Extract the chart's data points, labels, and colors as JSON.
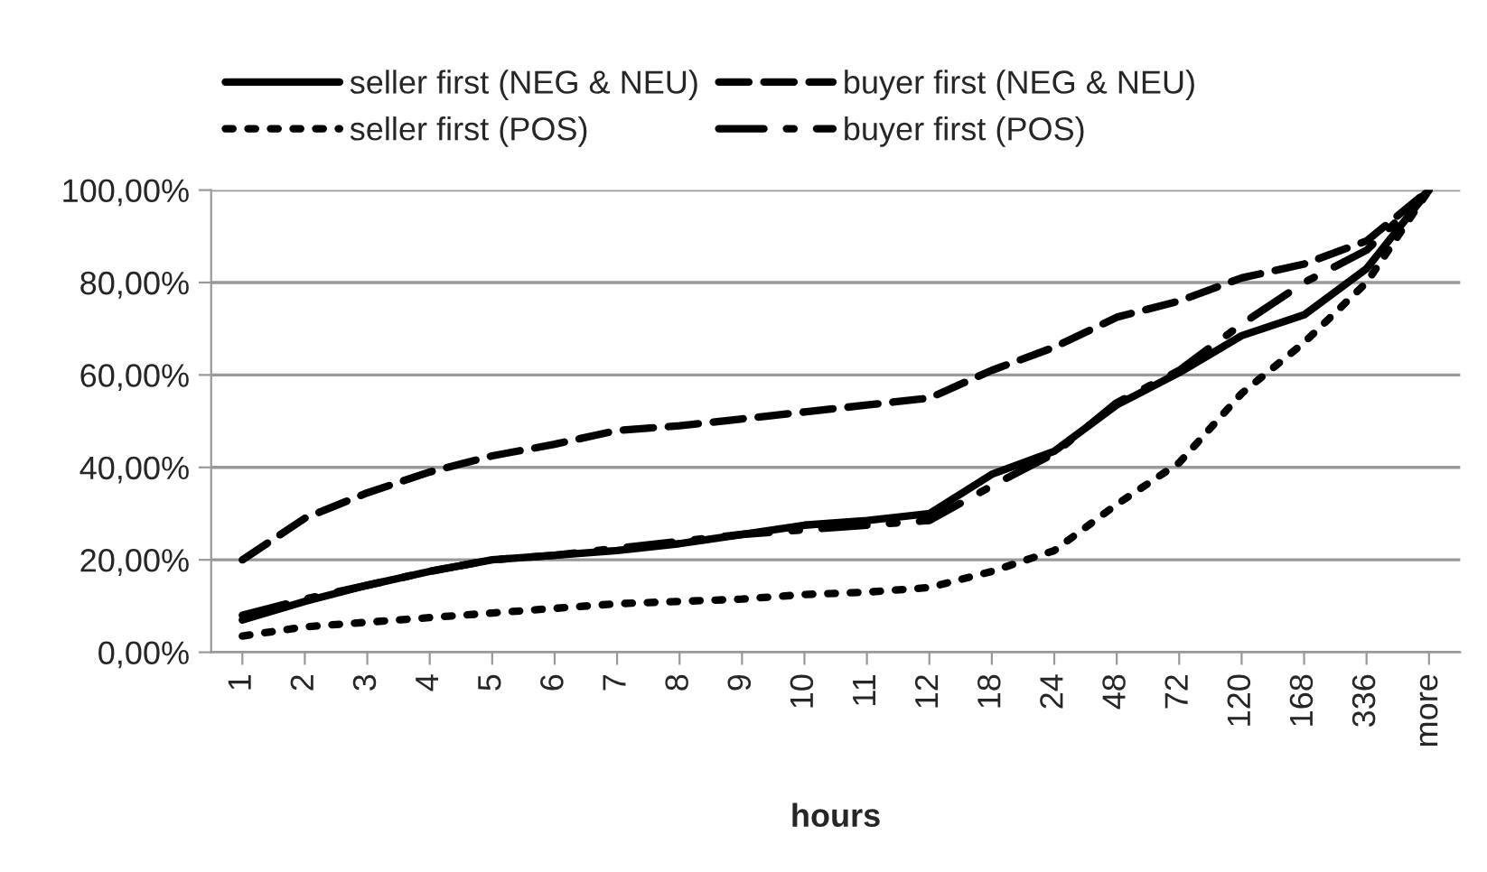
{
  "chart_data": {
    "type": "line",
    "xlabel": "hours",
    "categories": [
      "1",
      "2",
      "3",
      "4",
      "5",
      "6",
      "7",
      "8",
      "9",
      "10",
      "11",
      "12",
      "18",
      "24",
      "48",
      "72",
      "120",
      "168",
      "336",
      "more"
    ],
    "series": [
      {
        "name": "seller first (NEG & NEU)",
        "color": "#000000",
        "line_style": "solid",
        "values": [
          7,
          11,
          14.5,
          17.5,
          20,
          21,
          22,
          23.5,
          25.5,
          27.5,
          28.5,
          30,
          38.5,
          43.5,
          53.5,
          60.5,
          68.5,
          73,
          83,
          100
        ]
      },
      {
        "name": "seller first (POS)",
        "color": "#000000",
        "line_style": "dotted",
        "values": [
          3.5,
          5.5,
          6.5,
          7.5,
          8.5,
          9.5,
          10.5,
          11,
          11.5,
          12.5,
          13,
          14,
          17.5,
          22,
          32,
          41,
          56,
          67,
          80,
          100
        ]
      },
      {
        "name": "buyer first (NEG & NEU)",
        "color": "#000000",
        "line_style": "dashed",
        "values": [
          20,
          29,
          34.5,
          39,
          42.5,
          45,
          48,
          49,
          50.5,
          52,
          53.5,
          55,
          61,
          66,
          72.5,
          76,
          81,
          84,
          89,
          100
        ]
      },
      {
        "name": "buyer first (POS)",
        "color": "#000000",
        "line_style": "dashdot",
        "values": [
          8,
          11.5,
          14.5,
          17.5,
          20,
          21,
          22.5,
          24,
          25.5,
          26.5,
          27.5,
          28.5,
          36,
          43,
          54,
          61,
          71,
          80,
          87,
          100
        ]
      }
    ],
    "ylim": [
      0,
      100
    ],
    "yticks": [
      {
        "value": 0,
        "label": "0,00%"
      },
      {
        "value": 20,
        "label": "20,00%"
      },
      {
        "value": 40,
        "label": "40,00%"
      },
      {
        "value": 60,
        "label": "60,00%"
      },
      {
        "value": 80,
        "label": "80,00%"
      },
      {
        "value": 100,
        "label": "100,00%"
      }
    ],
    "grid": "y",
    "legend": "top",
    "marker": "none"
  }
}
